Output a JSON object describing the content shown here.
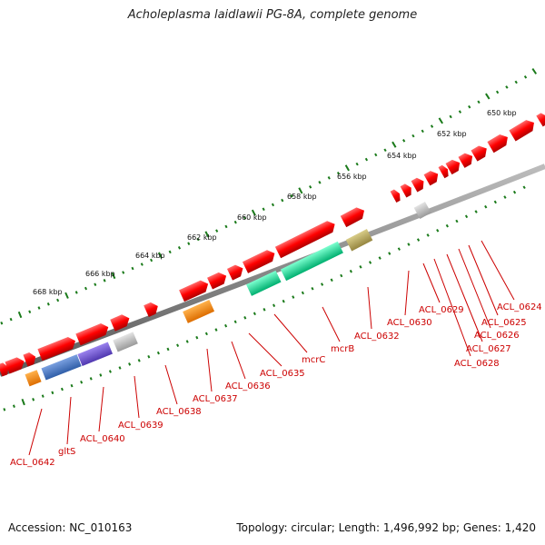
{
  "title": "Acholeplasma laidlawii PG-8A, complete genome",
  "footer": {
    "accession": "Accession: NC_010163",
    "topology": "Topology: circular; Length: 1,496,992 bp; Genes: 1,420"
  },
  "scale": {
    "unit": "kbp",
    "ticks": [
      {
        "label": "650 kbp"
      },
      {
        "label": "652 kbp"
      },
      {
        "label": "654 kbp"
      },
      {
        "label": "656 kbp"
      },
      {
        "label": "658 kbp"
      },
      {
        "label": "660 kbp"
      },
      {
        "label": "662 kbp"
      },
      {
        "label": "664 kbp"
      },
      {
        "label": "666 kbp"
      },
      {
        "label": "668 kbp"
      }
    ]
  },
  "genes": [
    {
      "label": "ACL_0624"
    },
    {
      "label": "ACL_0625"
    },
    {
      "label": "ACL_0626"
    },
    {
      "label": "ACL_0627"
    },
    {
      "label": "ACL_0628"
    },
    {
      "label": "ACL_0629"
    },
    {
      "label": "ACL_0630"
    },
    {
      "label": "ACL_0632"
    },
    {
      "label": "mcrB"
    },
    {
      "label": "mcrC"
    },
    {
      "label": "ACL_0635"
    },
    {
      "label": "ACL_0636"
    },
    {
      "label": "ACL_0637"
    },
    {
      "label": "ACL_0638"
    },
    {
      "label": "ACL_0639"
    },
    {
      "label": "ACL_0640"
    },
    {
      "label": "gltS"
    },
    {
      "label": "ACL_0642"
    }
  ],
  "colors": {
    "forward_strand": "#ff0000",
    "backbone": "#888888",
    "tick_green": "#1a7a1a",
    "label_red": "#cc0000",
    "orange": "#ff8800",
    "blue": "#4a78c0",
    "purple": "#7055c8",
    "grey": "#bbbbbb",
    "teal": "#00e090",
    "khaki": "#b8a860"
  }
}
